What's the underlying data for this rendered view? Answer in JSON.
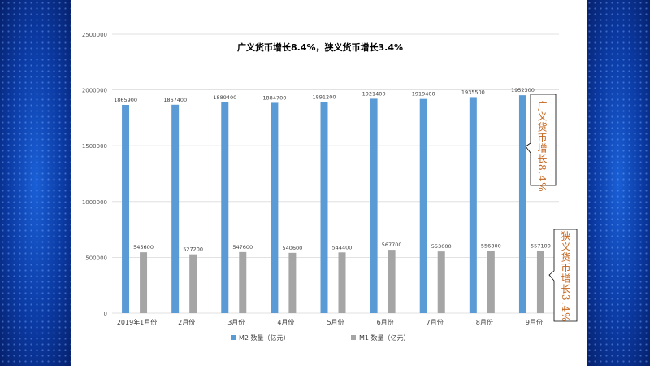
{
  "chart_data": {
    "type": "bar",
    "title": "广义货币增长8.4%，狭义货币增长3.4%",
    "categories": [
      "2019年1月份",
      "2月份",
      "3月份",
      "4月份",
      "5月份",
      "6月份",
      "7月份",
      "8月份",
      "9月份"
    ],
    "series": [
      {
        "name": "M2 数量（亿元）",
        "color": "#5b9bd5",
        "values": [
          1865900,
          1867400,
          1889400,
          1884700,
          1891200,
          1921400,
          1919400,
          1935500,
          1952300
        ]
      },
      {
        "name": "M1 数量（亿元）",
        "color": "#a5a5a5",
        "values": [
          545600,
          527200,
          547600,
          540600,
          544400,
          567700,
          553000,
          556800,
          557100
        ]
      }
    ],
    "ylim": [
      0,
      2500000
    ],
    "yticks": [
      0,
      500000,
      1000000,
      1500000,
      2000000,
      2500000
    ],
    "grid": true,
    "legend": "bottom"
  },
  "callouts": {
    "m2": "广义货币增长8.4%",
    "m1": "狭义货币增长3.4%"
  }
}
